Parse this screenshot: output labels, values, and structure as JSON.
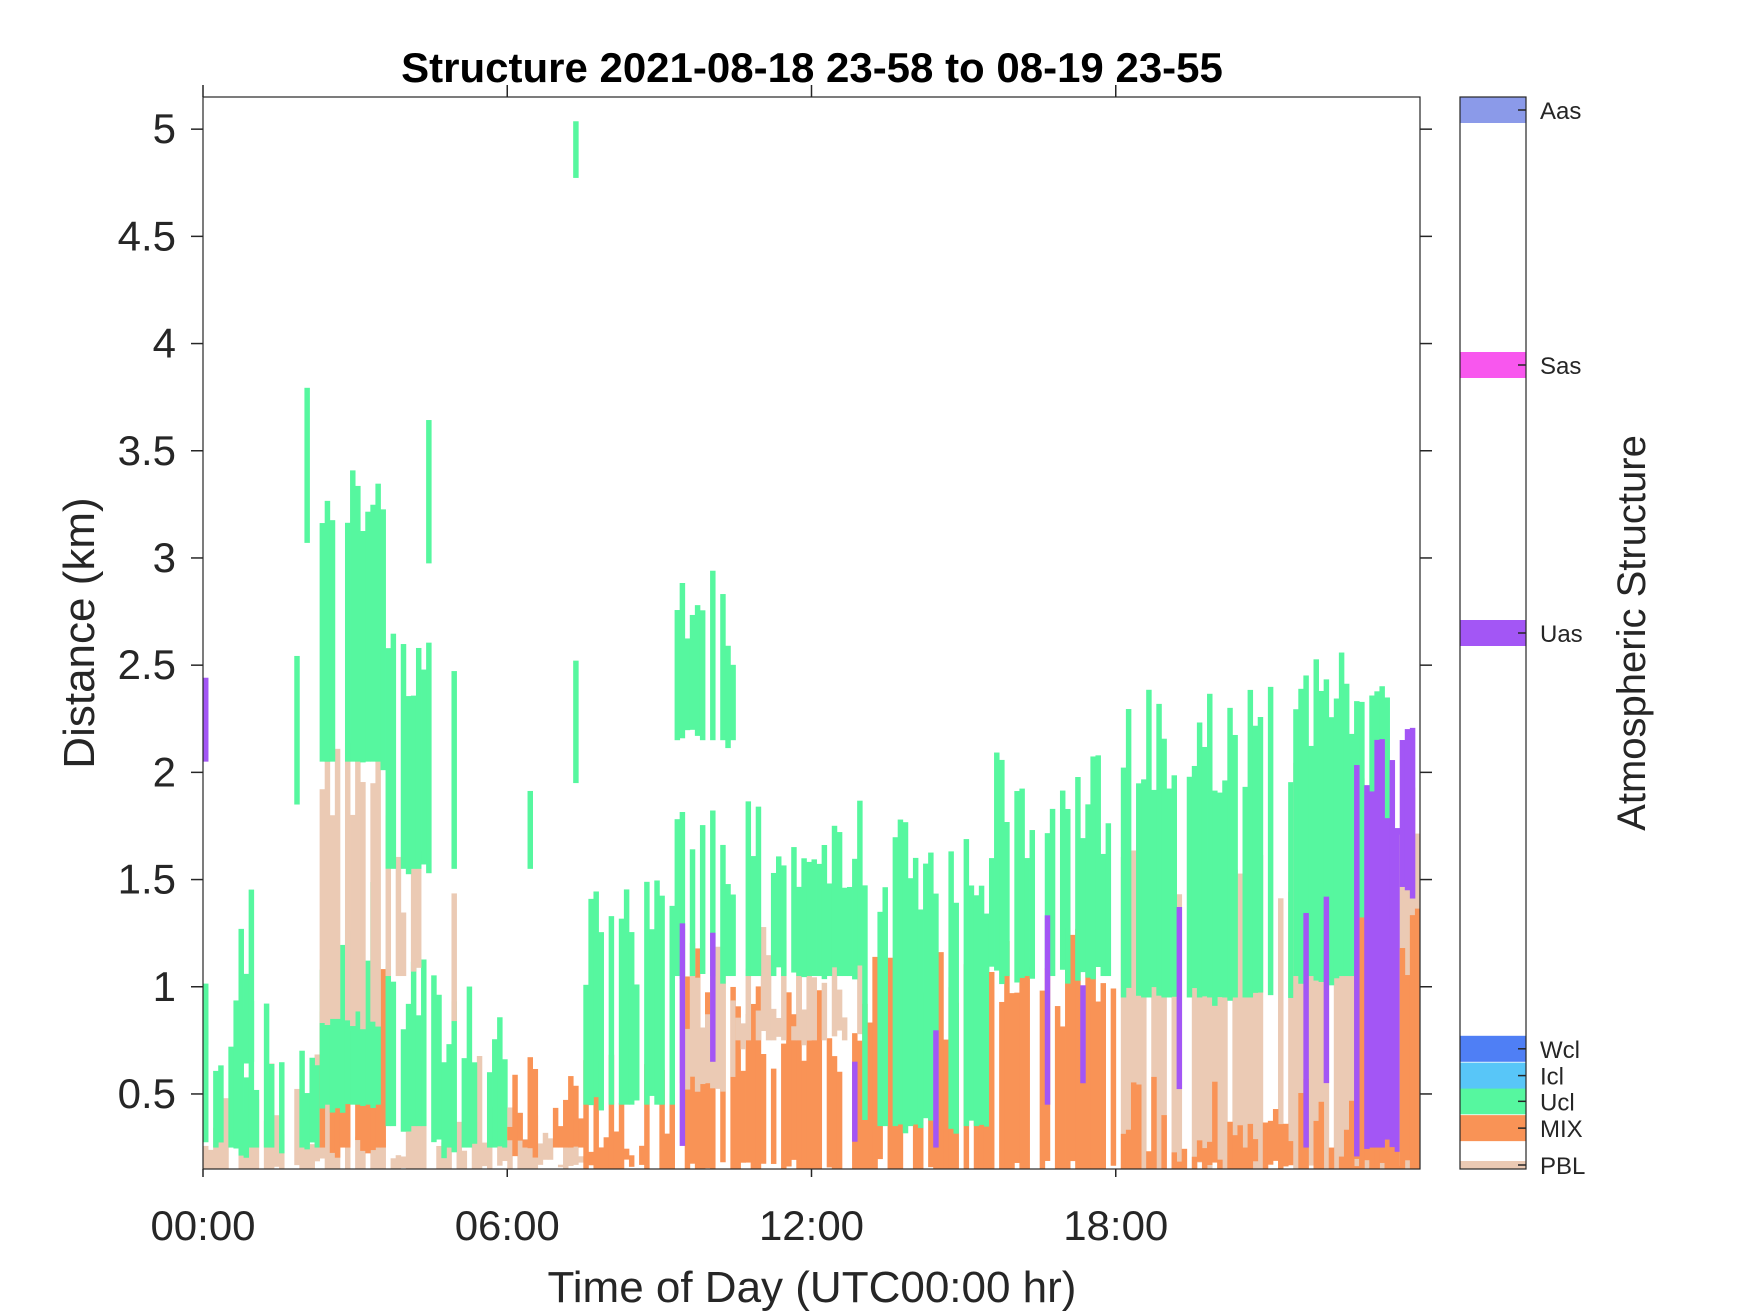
{
  "chart_data": {
    "type": "heatmap",
    "title": "Structure 2021-08-18 23-58 to 08-19 23-55",
    "xlabel": "Time of Day (UTC00:00 hr)",
    "ylabel": "Distance (km)",
    "colorbar_label": "Atmospheric Structure",
    "x_ticks": [
      "00:00",
      "06:00",
      "12:00",
      "18:00"
    ],
    "x_tick_values_hr": [
      0,
      6,
      12,
      18
    ],
    "xlim_hr": [
      0,
      24
    ],
    "y_ticks": [
      "0.5",
      "1",
      "1.5",
      "2",
      "2.5",
      "3",
      "3.5",
      "4",
      "4.5",
      "5"
    ],
    "y_tick_values_km": [
      0.5,
      1,
      1.5,
      2,
      2.5,
      3,
      3.5,
      4,
      4.5,
      5
    ],
    "ylim_km": [
      0.15,
      5.15
    ],
    "categories": [
      {
        "name": "PBL",
        "color": "#ebcab4"
      },
      {
        "name": "MIX",
        "color": "#f99356"
      },
      {
        "name": "Ucl",
        "color": "#56f79f"
      },
      {
        "name": "Icl",
        "color": "#58c6f8"
      },
      {
        "name": "Wcl",
        "color": "#4f7ff5"
      },
      {
        "name": "Uas",
        "color": "#a356f5"
      },
      {
        "name": "Sas",
        "color": "#f857ee"
      },
      {
        "name": "Aas",
        "color": "#8b9ae9"
      }
    ],
    "segments": [
      {
        "start": 0.0,
        "end": 2.3,
        "layers": [
          {
            "cls": "PBL",
            "bot": 0.15,
            "top": 0.45
          },
          {
            "cls": "Ucl",
            "bot": 0.25,
            "top": 0.75
          }
        ]
      },
      {
        "start": 0.0,
        "end": 0.1,
        "layers": [
          {
            "cls": "Uas",
            "bot": 2.05,
            "top": 2.65
          },
          {
            "cls": "Ucl",
            "bot": 0.75,
            "top": 1.25
          }
        ]
      },
      {
        "start": 0.7,
        "end": 1.0,
        "layers": [
          {
            "cls": "Ucl",
            "bot": 0.65,
            "top": 1.25
          }
        ]
      },
      {
        "start": 1.8,
        "end": 1.9,
        "layers": [
          {
            "cls": "Ucl",
            "bot": 1.85,
            "top": 2.35
          }
        ]
      },
      {
        "start": 2.0,
        "end": 2.1,
        "layers": [
          {
            "cls": "Ucl",
            "bot": 3.05,
            "top": 3.65
          }
        ]
      },
      {
        "start": 2.3,
        "end": 3.6,
        "layers": [
          {
            "cls": "PBL",
            "bot": 0.15,
            "top": 0.45
          },
          {
            "cls": "MIX",
            "bot": 0.25,
            "top": 0.85
          },
          {
            "cls": "Ucl",
            "bot": 0.45,
            "top": 1.25
          },
          {
            "cls": "PBL",
            "bot": 0.85,
            "top": 2.05
          },
          {
            "cls": "Ucl",
            "bot": 2.05,
            "top": 3.25
          }
        ]
      },
      {
        "start": 3.6,
        "end": 4.5,
        "layers": [
          {
            "cls": "PBL",
            "bot": 0.15,
            "top": 0.45
          },
          {
            "cls": "Ucl",
            "bot": 0.35,
            "top": 1.05
          },
          {
            "cls": "PBL",
            "bot": 1.05,
            "top": 1.55
          },
          {
            "cls": "Ucl",
            "bot": 1.55,
            "top": 2.45
          }
        ]
      },
      {
        "start": 4.4,
        "end": 4.5,
        "layers": [
          {
            "cls": "Ucl",
            "bot": 2.95,
            "top": 3.55
          }
        ]
      },
      {
        "start": 4.5,
        "end": 6.0,
        "layers": [
          {
            "cls": "PBL",
            "bot": 0.15,
            "top": 0.45
          },
          {
            "cls": "Ucl",
            "bot": 0.25,
            "top": 0.85
          }
        ]
      },
      {
        "start": 4.9,
        "end": 5.0,
        "layers": [
          {
            "cls": "PBL",
            "bot": 0.85,
            "top": 1.55
          },
          {
            "cls": "Ucl",
            "bot": 1.55,
            "top": 2.25
          }
        ]
      },
      {
        "start": 6.0,
        "end": 7.5,
        "layers": [
          {
            "cls": "PBL",
            "bot": 0.15,
            "top": 0.25
          },
          {
            "cls": "MIX",
            "bot": 0.25,
            "top": 0.45
          }
        ]
      },
      {
        "start": 6.4,
        "end": 6.5,
        "layers": [
          {
            "cls": "Ucl",
            "bot": 1.55,
            "top": 2.15
          }
        ]
      },
      {
        "start": 7.3,
        "end": 7.4,
        "layers": [
          {
            "cls": "Ucl",
            "bot": 1.95,
            "top": 2.55
          },
          {
            "cls": "Ucl",
            "bot": 4.75,
            "top": 5.15
          }
        ]
      },
      {
        "start": 7.5,
        "end": 9.3,
        "layers": [
          {
            "cls": "MIX",
            "bot": 0.15,
            "top": 0.45
          },
          {
            "cls": "Ucl",
            "bot": 0.45,
            "top": 1.25
          }
        ]
      },
      {
        "start": 9.3,
        "end": 10.5,
        "layers": [
          {
            "cls": "MIX",
            "bot": 0.15,
            "top": 0.95
          },
          {
            "cls": "PBL",
            "bot": 0.55,
            "top": 1.05
          },
          {
            "cls": "Ucl",
            "bot": 1.05,
            "top": 1.65
          },
          {
            "cls": "Ucl",
            "bot": 2.15,
            "top": 2.75
          }
        ]
      },
      {
        "start": 9.4,
        "end": 9.5,
        "layers": [
          {
            "cls": "Uas",
            "bot": 0.25,
            "top": 1.45
          }
        ]
      },
      {
        "start": 10.0,
        "end": 10.1,
        "layers": [
          {
            "cls": "Uas",
            "bot": 0.65,
            "top": 1.45
          }
        ]
      },
      {
        "start": 10.5,
        "end": 13.0,
        "layers": [
          {
            "cls": "MIX",
            "bot": 0.15,
            "top": 0.85
          },
          {
            "cls": "PBL",
            "bot": 0.75,
            "top": 1.05
          },
          {
            "cls": "Ucl",
            "bot": 1.05,
            "top": 1.65
          }
        ]
      },
      {
        "start": 12.8,
        "end": 12.9,
        "layers": [
          {
            "cls": "Uas",
            "bot": 0.25,
            "top": 0.75
          }
        ]
      },
      {
        "start": 13.0,
        "end": 15.5,
        "layers": [
          {
            "cls": "MIX",
            "bot": 0.15,
            "top": 0.95
          },
          {
            "cls": "Ucl",
            "bot": 0.35,
            "top": 1.55
          }
        ]
      },
      {
        "start": 14.4,
        "end": 14.5,
        "layers": [
          {
            "cls": "Uas",
            "bot": 0.25,
            "top": 0.65
          }
        ]
      },
      {
        "start": 15.5,
        "end": 18.1,
        "layers": [
          {
            "cls": "MIX",
            "bot": 0.15,
            "top": 1.05
          },
          {
            "cls": "Ucl",
            "bot": 1.05,
            "top": 1.85
          }
        ]
      },
      {
        "start": 16.6,
        "end": 16.7,
        "layers": [
          {
            "cls": "Uas",
            "bot": 0.45,
            "top": 1.25
          }
        ]
      },
      {
        "start": 17.3,
        "end": 17.4,
        "layers": [
          {
            "cls": "Uas",
            "bot": 0.55,
            "top": 1.15
          }
        ]
      },
      {
        "start": 18.1,
        "end": 21.5,
        "layers": [
          {
            "cls": "PBL",
            "bot": 0.15,
            "top": 1.55
          },
          {
            "cls": "MIX",
            "bot": 0.15,
            "top": 0.35
          },
          {
            "cls": "Ucl",
            "bot": 0.95,
            "top": 2.15
          }
        ]
      },
      {
        "start": 19.2,
        "end": 19.3,
        "layers": [
          {
            "cls": "Uas",
            "bot": 0.55,
            "top": 1.35
          }
        ]
      },
      {
        "start": 21.5,
        "end": 23.5,
        "layers": [
          {
            "cls": "PBL",
            "bot": 0.15,
            "top": 1.85
          },
          {
            "cls": "Ucl",
            "bot": 1.05,
            "top": 2.35
          },
          {
            "cls": "MIX",
            "bot": 0.15,
            "top": 0.35
          }
        ]
      },
      {
        "start": 21.7,
        "end": 21.8,
        "layers": [
          {
            "cls": "Uas",
            "bot": 0.25,
            "top": 1.45
          }
        ]
      },
      {
        "start": 22.1,
        "end": 22.2,
        "layers": [
          {
            "cls": "Uas",
            "bot": 0.55,
            "top": 1.45
          }
        ]
      },
      {
        "start": 22.7,
        "end": 23.6,
        "layers": [
          {
            "cls": "MIX",
            "bot": 0.15,
            "top": 1.25
          },
          {
            "cls": "Uas",
            "bot": 0.25,
            "top": 1.95
          }
        ]
      },
      {
        "start": 23.6,
        "end": 24.0,
        "layers": [
          {
            "cls": "PBL",
            "bot": 0.15,
            "top": 1.85
          },
          {
            "cls": "MIX",
            "bot": 0.15,
            "top": 1.15
          },
          {
            "cls": "Uas",
            "bot": 1.45,
            "top": 2.05
          }
        ]
      }
    ]
  }
}
